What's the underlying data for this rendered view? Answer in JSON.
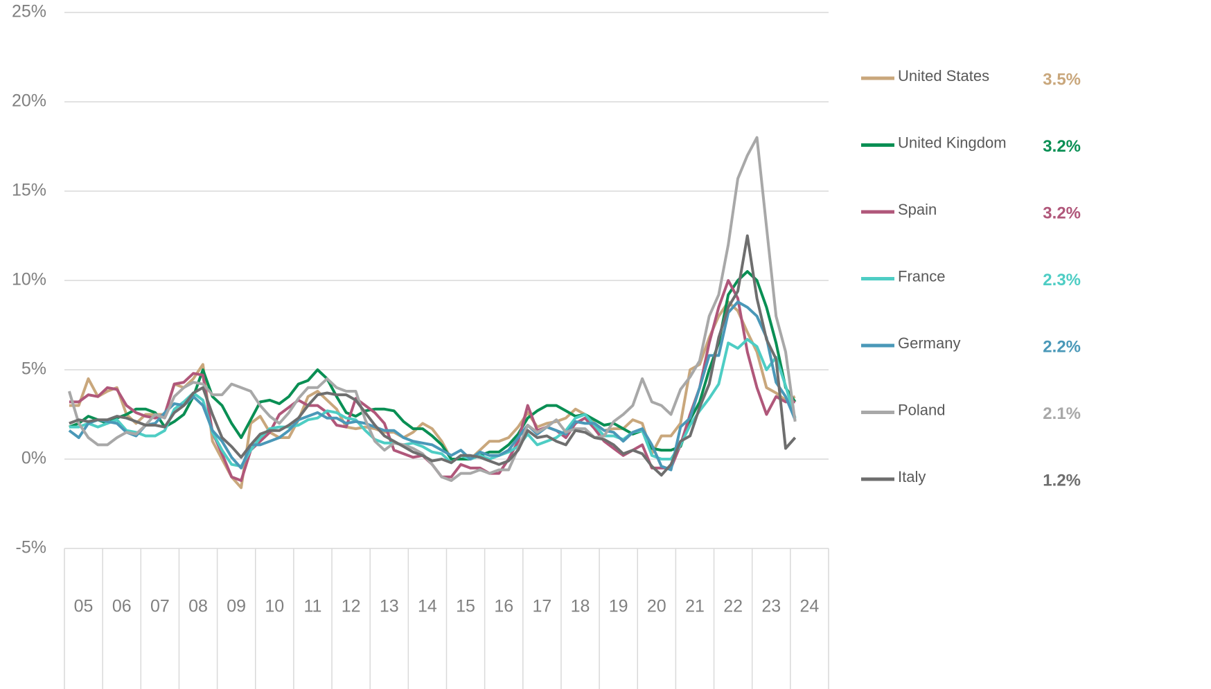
{
  "chart_data": {
    "type": "line",
    "categories": [
      "05",
      null,
      null,
      null,
      "06",
      null,
      null,
      null,
      "07",
      null,
      null,
      null,
      "08",
      null,
      null,
      null,
      "09",
      null,
      null,
      null,
      "10",
      null,
      null,
      null,
      "11",
      null,
      null,
      null,
      "12",
      null,
      null,
      null,
      "13",
      null,
      null,
      null,
      "14",
      null,
      null,
      null,
      "15",
      null,
      null,
      null,
      "16",
      null,
      null,
      null,
      "17",
      null,
      null,
      null,
      "18",
      null,
      null,
      null,
      "19",
      null,
      null,
      null,
      "20",
      null,
      null,
      null,
      "21",
      null,
      null,
      null,
      "22",
      null,
      null,
      null,
      "23",
      null,
      null,
      null,
      "24"
    ],
    "ylim": [
      -5,
      25
    ],
    "yticks": [
      {
        "value": -5,
        "label": "-5%"
      },
      {
        "value": 0,
        "label": "0%"
      },
      {
        "value": 5,
        "label": "5%"
      },
      {
        "value": 10,
        "label": "10%"
      },
      {
        "value": 15,
        "label": "15%"
      },
      {
        "value": 20,
        "label": "20%"
      },
      {
        "value": 25,
        "label": "25%"
      }
    ],
    "grid": true,
    "series": [
      {
        "name": "United States",
        "color": "#c9a77c",
        "latest_label": "3.5%",
        "values": [
          3.0,
          3.0,
          4.5,
          3.5,
          3.8,
          4.0,
          2.5,
          2.0,
          2.5,
          2.5,
          2.5,
          4.2,
          4.0,
          4.5,
          5.3,
          1.0,
          0,
          -1.0,
          -1.6,
          2.0,
          2.4,
          1.5,
          1.2,
          1.2,
          2.2,
          3.5,
          3.8,
          3.3,
          2.8,
          1.8,
          1.7,
          1.8,
          1.7,
          1.5,
          1.5,
          1.2,
          1.5,
          2.0,
          1.7,
          1.0,
          0,
          0,
          0,
          0.5,
          1.0,
          1.0,
          1.2,
          1.8,
          2.6,
          1.8,
          2.0,
          2.1,
          2.3,
          2.8,
          2.5,
          2.0,
          1.6,
          1.7,
          1.7,
          2.2,
          2.0,
          0.3,
          1.3,
          1.3,
          2.0,
          5.0,
          5.3,
          6.8,
          8.0,
          8.8,
          8.3,
          7.1,
          6.0,
          4.0,
          3.7,
          3.3,
          3.5
        ]
      },
      {
        "name": "United Kingdom",
        "color": "#0a8f54",
        "latest_label": "3.2%",
        "values": [
          1.8,
          2.0,
          2.4,
          2.2,
          2.0,
          2.3,
          2.5,
          2.8,
          2.8,
          2.6,
          1.8,
          2.1,
          2.5,
          3.5,
          5.0,
          3.5,
          3.0,
          2.0,
          1.2,
          2.2,
          3.2,
          3.3,
          3.1,
          3.5,
          4.2,
          4.4,
          5.0,
          4.5,
          3.5,
          2.6,
          2.4,
          2.7,
          2.8,
          2.8,
          2.7,
          2.1,
          1.7,
          1.7,
          1.3,
          0.8,
          0.0,
          0.0,
          0.0,
          0.2,
          0.4,
          0.4,
          0.8,
          1.4,
          2.3,
          2.7,
          3.0,
          3.0,
          2.7,
          2.4,
          2.5,
          2.2,
          1.9,
          2.0,
          1.7,
          1.4,
          1.6,
          0.6,
          0.5,
          0.5,
          0.7,
          2.2,
          3.2,
          5.0,
          6.5,
          9.2,
          10.0,
          10.5,
          10.0,
          8.5,
          6.5,
          4.0,
          3.2
        ]
      },
      {
        "name": "Spain",
        "color": "#b0577a",
        "latest_label": "3.2%",
        "values": [
          3.2,
          3.2,
          3.6,
          3.5,
          4.0,
          3.9,
          3.0,
          2.6,
          2.4,
          2.3,
          2.5,
          4.2,
          4.3,
          4.8,
          4.7,
          1.5,
          0.3,
          -1.0,
          -1.2,
          0.5,
          1.0,
          1.5,
          2.5,
          2.9,
          3.3,
          3.0,
          3.0,
          2.6,
          1.9,
          1.8,
          3.4,
          3.0,
          2.6,
          2.0,
          0.5,
          0.3,
          0.1,
          0.2,
          -0.3,
          -1.0,
          -1.0,
          -0.3,
          -0.5,
          -0.5,
          -0.8,
          -0.8,
          0.0,
          1.0,
          3.0,
          1.6,
          1.8,
          1.6,
          1.2,
          2.0,
          2.3,
          1.7,
          1.0,
          0.6,
          0.2,
          0.5,
          0.8,
          -0.5,
          -0.5,
          -0.5,
          0.8,
          2.5,
          4.0,
          6.5,
          8.5,
          10.0,
          9.0,
          6.0,
          4.0,
          2.5,
          3.5,
          3.2,
          3.2
        ]
      },
      {
        "name": "France",
        "color": "#4ecdc4",
        "latest_label": "2.3%",
        "values": [
          1.8,
          1.8,
          2.0,
          1.8,
          2.0,
          2.2,
          1.6,
          1.5,
          1.3,
          1.3,
          1.6,
          2.8,
          3.2,
          3.7,
          3.3,
          1.5,
          0.5,
          -0.3,
          -0.4,
          0.5,
          1.2,
          1.7,
          1.8,
          1.8,
          1.9,
          2.2,
          2.3,
          2.7,
          2.6,
          2.3,
          2.2,
          1.6,
          1.1,
          0.9,
          0.9,
          0.8,
          0.9,
          0.7,
          0.4,
          0.3,
          -0.2,
          0.2,
          0.0,
          0.2,
          0.0,
          0.2,
          0.4,
          0.7,
          1.4,
          0.8,
          1.0,
          1.2,
          1.6,
          2.3,
          2.5,
          1.9,
          1.3,
          1.3,
          1.1,
          1.5,
          1.6,
          0.2,
          0.0,
          0.0,
          0.8,
          1.9,
          2.7,
          3.4,
          4.2,
          6.5,
          6.2,
          6.7,
          6.3,
          5.0,
          5.7,
          4.1,
          2.3
        ]
      },
      {
        "name": "Germany",
        "color": "#4a98b8",
        "latest_label": "2.2%",
        "values": [
          1.6,
          1.2,
          2.0,
          2.2,
          2.1,
          2.0,
          1.5,
          1.3,
          1.9,
          2.0,
          2.6,
          3.1,
          3.0,
          3.5,
          3.0,
          1.6,
          1.0,
          0.1,
          -0.5,
          0.8,
          0.8,
          1.0,
          1.2,
          1.6,
          2.2,
          2.4,
          2.6,
          2.3,
          2.3,
          2.0,
          2.1,
          2.0,
          1.8,
          1.6,
          1.6,
          1.2,
          1.0,
          0.9,
          0.8,
          0.5,
          0.2,
          0.5,
          0.0,
          0.4,
          0.2,
          0.2,
          0.5,
          1.2,
          1.9,
          1.4,
          1.8,
          1.6,
          1.4,
          2.1,
          2.0,
          2.0,
          1.6,
          1.5,
          1.0,
          1.5,
          1.7,
          0.8,
          -0.4,
          -0.6,
          1.8,
          2.3,
          4.0,
          5.8,
          5.8,
          8.2,
          8.8,
          8.5,
          8.0,
          6.8,
          4.3,
          3.5,
          2.2
        ]
      },
      {
        "name": "Poland",
        "color": "#a8a8a8",
        "latest_label": "2.1%",
        "values": [
          3.8,
          2.0,
          1.2,
          0.8,
          0.8,
          1.2,
          1.5,
          1.4,
          1.9,
          2.5,
          2.3,
          3.5,
          4.0,
          4.3,
          4.2,
          3.6,
          3.6,
          4.2,
          4.0,
          3.8,
          3.0,
          2.4,
          2.0,
          2.6,
          3.4,
          4.0,
          4.0,
          4.5,
          4.0,
          3.8,
          3.8,
          2.2,
          1.0,
          0.5,
          0.9,
          0.8,
          0.6,
          0.3,
          -0.3,
          -1.0,
          -1.2,
          -0.8,
          -0.8,
          -0.6,
          -0.8,
          -0.6,
          -0.6,
          0.6,
          1.9,
          1.5,
          1.8,
          2.2,
          1.5,
          1.7,
          1.7,
          1.2,
          1.3,
          2.1,
          2.5,
          3.0,
          4.5,
          3.2,
          3.0,
          2.5,
          3.9,
          4.6,
          5.5,
          8.0,
          9.2,
          12.0,
          15.7,
          17.0,
          18.0,
          13.0,
          8.0,
          6.0,
          2.1
        ]
      },
      {
        "name": "Italy",
        "color": "#6e6e6e",
        "latest_label": "1.2%",
        "values": [
          2.0,
          2.2,
          2.1,
          2.2,
          2.2,
          2.4,
          2.3,
          2.1,
          1.9,
          1.9,
          1.8,
          2.6,
          3.0,
          3.7,
          4.0,
          2.5,
          1.2,
          0.7,
          0.1,
          0.8,
          1.4,
          1.6,
          1.6,
          1.9,
          2.3,
          3.0,
          3.6,
          3.7,
          3.6,
          3.6,
          3.3,
          2.6,
          1.9,
          1.3,
          1.0,
          0.7,
          0.4,
          0.2,
          -0.1,
          0.0,
          -0.2,
          0.2,
          0.2,
          0.1,
          -0.1,
          -0.3,
          -0.1,
          0.5,
          1.6,
          1.2,
          1.3,
          1.0,
          0.8,
          1.6,
          1.5,
          1.2,
          1.1,
          0.8,
          0.3,
          0.5,
          0.3,
          -0.4,
          -0.9,
          -0.3,
          1.0,
          1.3,
          2.9,
          4.2,
          6.8,
          8.5,
          9.4,
          12.5,
          9.0,
          6.7,
          5.6,
          0.6,
          1.2
        ]
      }
    ]
  }
}
